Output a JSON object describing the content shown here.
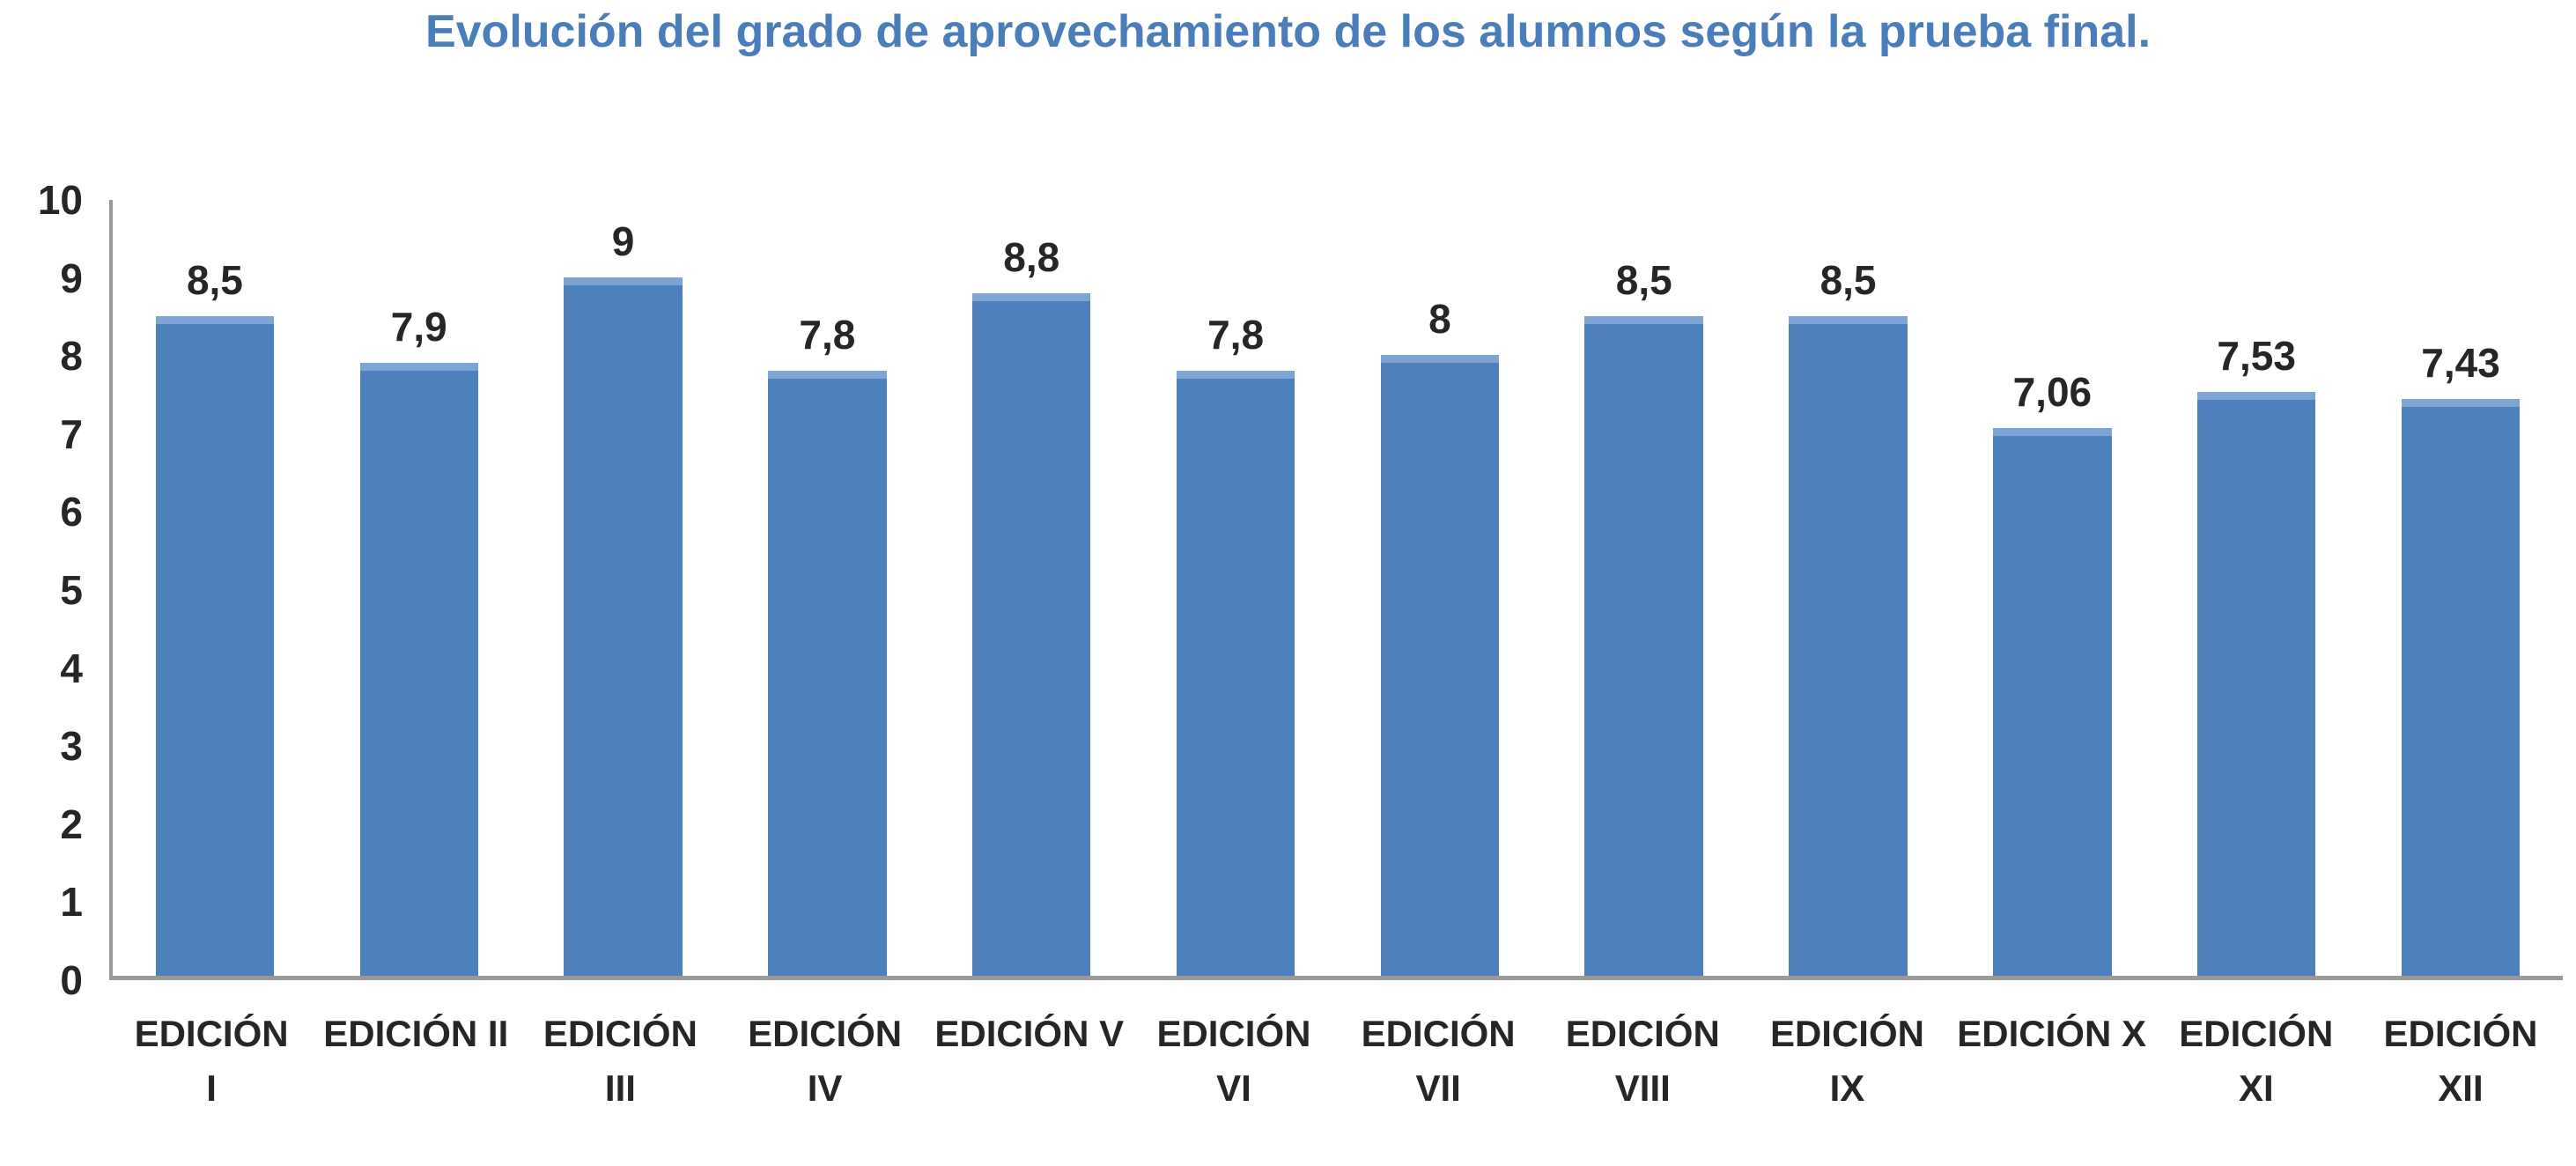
{
  "title": "Evolución del grado de aprovechamiento de los alumnos según la prueba final.",
  "colors": {
    "title_color": "#4a7ebb",
    "bar_fill": "#4e80bd",
    "bar_top_edge": "#7da4d2",
    "axis_line": "#9a9a9a",
    "label_color": "#262626"
  },
  "chart_data": {
    "type": "bar",
    "title": "Evolución del grado de aprovechamiento de los alumnos según la prueba final.",
    "categories": [
      "EDICIÓN I",
      "EDICIÓN II",
      "EDICIÓN III",
      "EDICIÓN IV",
      "EDICIÓN V",
      "EDICIÓN VI",
      "EDICIÓN VII",
      "EDICIÓN VIII",
      "EDICIÓN IX",
      "EDICIÓN X",
      "EDICIÓN XI",
      "EDICIÓN XII"
    ],
    "category_label_lines": [
      [
        "EDICIÓN",
        "I"
      ],
      [
        "EDICIÓN II",
        ""
      ],
      [
        "EDICIÓN",
        "III"
      ],
      [
        "EDICIÓN",
        "IV"
      ],
      [
        "EDICIÓN V",
        ""
      ],
      [
        "EDICIÓN",
        "VI"
      ],
      [
        "EDICIÓN",
        "VII"
      ],
      [
        "EDICIÓN",
        "VIII"
      ],
      [
        "EDICIÓN",
        "IX"
      ],
      [
        "EDICIÓN X",
        ""
      ],
      [
        "EDICIÓN",
        "XI"
      ],
      [
        "EDICIÓN",
        "XII"
      ]
    ],
    "values": [
      8.5,
      7.9,
      9,
      7.8,
      8.8,
      7.8,
      8,
      8.5,
      8.5,
      7.06,
      7.53,
      7.43
    ],
    "value_labels": [
      "8,5",
      "7,9",
      "9",
      "7,8",
      "8,8",
      "7,8",
      "8",
      "8,5",
      "8,5",
      "7,06",
      "7,53",
      "7,43"
    ],
    "xlabel": "",
    "ylabel": "",
    "ylim": [
      0,
      10
    ],
    "yticks": [
      10,
      9,
      8,
      7,
      6,
      5,
      4,
      3,
      2,
      1,
      0
    ],
    "grid": false,
    "legend": "none"
  }
}
